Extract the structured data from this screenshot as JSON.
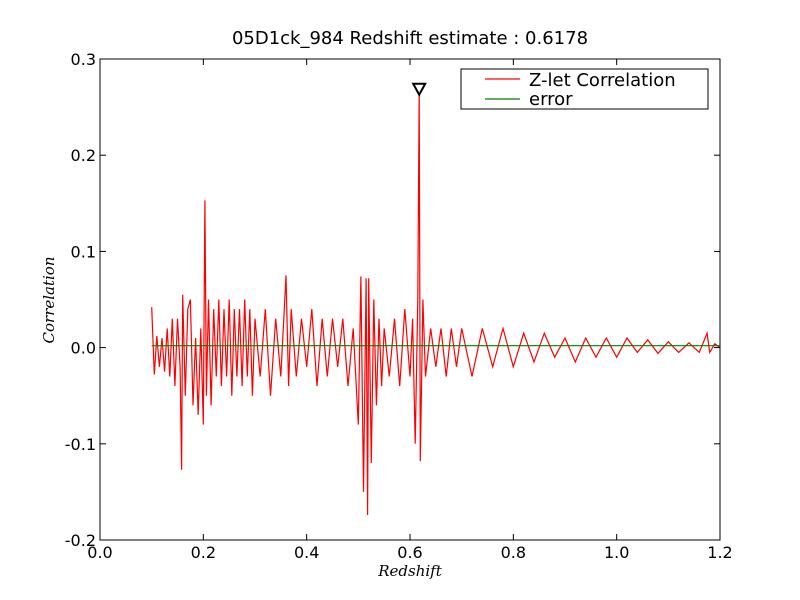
{
  "chart_data": {
    "type": "line",
    "title": "05D1ck_984 Redshift estimate : 0.6178",
    "xlabel": "Redshift",
    "ylabel": "Correlation",
    "xlim": [
      0.0,
      1.2
    ],
    "ylim": [
      -0.2,
      0.3
    ],
    "xticks": [
      0.0,
      0.2,
      0.4,
      0.6,
      0.8,
      1.0,
      1.2
    ],
    "xtick_labels": [
      "0.0",
      "0.2",
      "0.4",
      "0.6",
      "0.8",
      "1.0",
      "1.2"
    ],
    "yticks": [
      -0.2,
      -0.1,
      0.0,
      0.1,
      0.2,
      0.3
    ],
    "ytick_labels": [
      "-0.2",
      "-0.1",
      "0.0",
      "0.1",
      "0.2",
      "0.3"
    ],
    "grid": false,
    "legend_position": "top-right",
    "peak_marker": {
      "x": 0.6178,
      "y": 0.268,
      "shape": "downward-triangle"
    },
    "series": [
      {
        "name": "Z-let Correlation",
        "color": "#ff0000",
        "x": [
          0.1,
          0.105,
          0.11,
          0.115,
          0.12,
          0.125,
          0.13,
          0.135,
          0.14,
          0.145,
          0.15,
          0.155,
          0.158,
          0.16,
          0.165,
          0.17,
          0.175,
          0.18,
          0.185,
          0.19,
          0.195,
          0.2,
          0.203,
          0.206,
          0.21,
          0.215,
          0.22,
          0.225,
          0.23,
          0.235,
          0.24,
          0.245,
          0.25,
          0.255,
          0.26,
          0.265,
          0.27,
          0.275,
          0.28,
          0.285,
          0.29,
          0.295,
          0.3,
          0.31,
          0.32,
          0.33,
          0.34,
          0.35,
          0.36,
          0.365,
          0.37,
          0.38,
          0.39,
          0.4,
          0.41,
          0.42,
          0.43,
          0.44,
          0.45,
          0.46,
          0.47,
          0.48,
          0.49,
          0.5,
          0.505,
          0.51,
          0.515,
          0.518,
          0.52,
          0.525,
          0.53,
          0.535,
          0.54,
          0.545,
          0.55,
          0.56,
          0.57,
          0.58,
          0.59,
          0.6,
          0.605,
          0.61,
          0.615,
          0.6178,
          0.62,
          0.625,
          0.63,
          0.64,
          0.65,
          0.66,
          0.67,
          0.68,
          0.69,
          0.7,
          0.72,
          0.74,
          0.76,
          0.78,
          0.8,
          0.82,
          0.84,
          0.86,
          0.88,
          0.9,
          0.92,
          0.94,
          0.96,
          0.98,
          1.0,
          1.02,
          1.04,
          1.06,
          1.08,
          1.1,
          1.12,
          1.14,
          1.16,
          1.175,
          1.18,
          1.19,
          1.2
        ],
        "y": [
          0.042,
          -0.028,
          0.012,
          -0.02,
          0.01,
          -0.025,
          0.02,
          -0.03,
          0.03,
          -0.04,
          0.03,
          -0.02,
          -0.127,
          0.055,
          -0.05,
          0.04,
          0.05,
          -0.06,
          0.01,
          -0.07,
          0.02,
          -0.08,
          0.153,
          -0.05,
          0.05,
          -0.06,
          0.04,
          -0.03,
          0.05,
          -0.04,
          0.04,
          -0.03,
          0.05,
          -0.05,
          0.04,
          -0.03,
          0.04,
          -0.04,
          0.05,
          -0.03,
          0.04,
          -0.05,
          0.03,
          -0.03,
          0.04,
          -0.05,
          0.03,
          -0.03,
          0.075,
          -0.04,
          0.04,
          -0.03,
          0.03,
          -0.02,
          0.04,
          -0.04,
          0.03,
          -0.03,
          0.03,
          -0.02,
          0.03,
          -0.04,
          0.02,
          -0.08,
          0.074,
          -0.15,
          0.072,
          -0.174,
          0.072,
          -0.12,
          0.05,
          -0.06,
          0.03,
          -0.04,
          0.02,
          -0.03,
          0.03,
          -0.04,
          0.04,
          -0.03,
          0.03,
          -0.1,
          0.05,
          0.268,
          -0.118,
          0.05,
          -0.03,
          0.02,
          -0.02,
          0.02,
          -0.03,
          0.02,
          -0.02,
          0.02,
          -0.03,
          0.02,
          -0.02,
          0.02,
          -0.02,
          0.015,
          -0.015,
          0.015,
          -0.01,
          0.01,
          -0.015,
          0.01,
          -0.01,
          0.01,
          -0.01,
          0.01,
          -0.005,
          0.008,
          -0.006,
          0.006,
          -0.005,
          0.005,
          -0.005,
          0.015,
          -0.005,
          0.004,
          0.0
        ]
      },
      {
        "name": "error",
        "color": "#008000",
        "x": [
          0.1,
          1.2
        ],
        "y": [
          0.002,
          0.002
        ]
      }
    ]
  }
}
